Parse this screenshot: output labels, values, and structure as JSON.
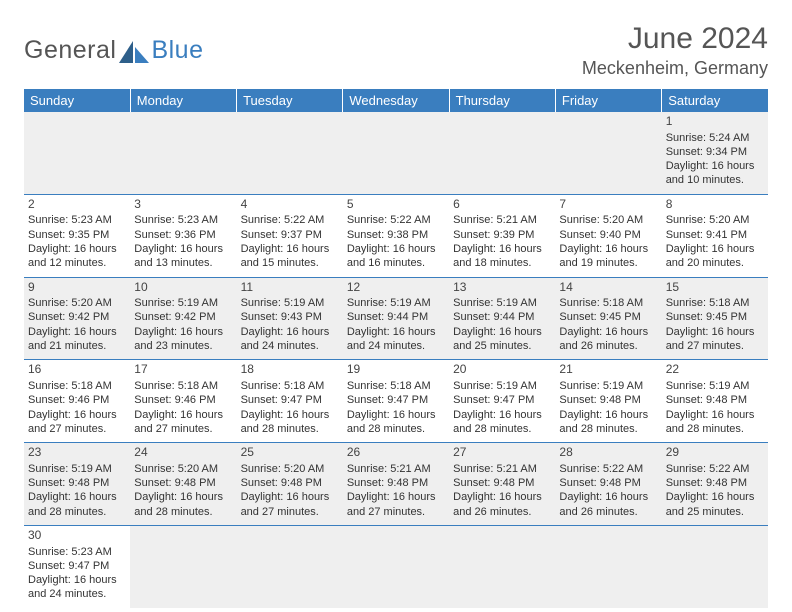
{
  "brand": {
    "part1": "General",
    "part2": "Blue"
  },
  "title": {
    "month": "June 2024",
    "location": "Meckenheim, Germany"
  },
  "colors": {
    "header_bg": "#3a7ebf",
    "header_fg": "#ffffff",
    "row_alt_bg": "#efefef",
    "text": "#333333",
    "title_text": "#555555",
    "border": "#3a7ebf"
  },
  "fonts": {
    "base_family": "Arial",
    "title_size_pt": 22,
    "header_size_pt": 10,
    "cell_size_pt": 8
  },
  "weekdays": [
    "Sunday",
    "Monday",
    "Tuesday",
    "Wednesday",
    "Thursday",
    "Friday",
    "Saturday"
  ],
  "grid": [
    [
      null,
      null,
      null,
      null,
      null,
      null,
      {
        "n": "1",
        "sr": "Sunrise: 5:24 AM",
        "ss": "Sunset: 9:34 PM",
        "d1": "Daylight: 16 hours",
        "d2": "and 10 minutes."
      }
    ],
    [
      {
        "n": "2",
        "sr": "Sunrise: 5:23 AM",
        "ss": "Sunset: 9:35 PM",
        "d1": "Daylight: 16 hours",
        "d2": "and 12 minutes."
      },
      {
        "n": "3",
        "sr": "Sunrise: 5:23 AM",
        "ss": "Sunset: 9:36 PM",
        "d1": "Daylight: 16 hours",
        "d2": "and 13 minutes."
      },
      {
        "n": "4",
        "sr": "Sunrise: 5:22 AM",
        "ss": "Sunset: 9:37 PM",
        "d1": "Daylight: 16 hours",
        "d2": "and 15 minutes."
      },
      {
        "n": "5",
        "sr": "Sunrise: 5:22 AM",
        "ss": "Sunset: 9:38 PM",
        "d1": "Daylight: 16 hours",
        "d2": "and 16 minutes."
      },
      {
        "n": "6",
        "sr": "Sunrise: 5:21 AM",
        "ss": "Sunset: 9:39 PM",
        "d1": "Daylight: 16 hours",
        "d2": "and 18 minutes."
      },
      {
        "n": "7",
        "sr": "Sunrise: 5:20 AM",
        "ss": "Sunset: 9:40 PM",
        "d1": "Daylight: 16 hours",
        "d2": "and 19 minutes."
      },
      {
        "n": "8",
        "sr": "Sunrise: 5:20 AM",
        "ss": "Sunset: 9:41 PM",
        "d1": "Daylight: 16 hours",
        "d2": "and 20 minutes."
      }
    ],
    [
      {
        "n": "9",
        "sr": "Sunrise: 5:20 AM",
        "ss": "Sunset: 9:42 PM",
        "d1": "Daylight: 16 hours",
        "d2": "and 21 minutes."
      },
      {
        "n": "10",
        "sr": "Sunrise: 5:19 AM",
        "ss": "Sunset: 9:42 PM",
        "d1": "Daylight: 16 hours",
        "d2": "and 23 minutes."
      },
      {
        "n": "11",
        "sr": "Sunrise: 5:19 AM",
        "ss": "Sunset: 9:43 PM",
        "d1": "Daylight: 16 hours",
        "d2": "and 24 minutes."
      },
      {
        "n": "12",
        "sr": "Sunrise: 5:19 AM",
        "ss": "Sunset: 9:44 PM",
        "d1": "Daylight: 16 hours",
        "d2": "and 24 minutes."
      },
      {
        "n": "13",
        "sr": "Sunrise: 5:19 AM",
        "ss": "Sunset: 9:44 PM",
        "d1": "Daylight: 16 hours",
        "d2": "and 25 minutes."
      },
      {
        "n": "14",
        "sr": "Sunrise: 5:18 AM",
        "ss": "Sunset: 9:45 PM",
        "d1": "Daylight: 16 hours",
        "d2": "and 26 minutes."
      },
      {
        "n": "15",
        "sr": "Sunrise: 5:18 AM",
        "ss": "Sunset: 9:45 PM",
        "d1": "Daylight: 16 hours",
        "d2": "and 27 minutes."
      }
    ],
    [
      {
        "n": "16",
        "sr": "Sunrise: 5:18 AM",
        "ss": "Sunset: 9:46 PM",
        "d1": "Daylight: 16 hours",
        "d2": "and 27 minutes."
      },
      {
        "n": "17",
        "sr": "Sunrise: 5:18 AM",
        "ss": "Sunset: 9:46 PM",
        "d1": "Daylight: 16 hours",
        "d2": "and 27 minutes."
      },
      {
        "n": "18",
        "sr": "Sunrise: 5:18 AM",
        "ss": "Sunset: 9:47 PM",
        "d1": "Daylight: 16 hours",
        "d2": "and 28 minutes."
      },
      {
        "n": "19",
        "sr": "Sunrise: 5:18 AM",
        "ss": "Sunset: 9:47 PM",
        "d1": "Daylight: 16 hours",
        "d2": "and 28 minutes."
      },
      {
        "n": "20",
        "sr": "Sunrise: 5:19 AM",
        "ss": "Sunset: 9:47 PM",
        "d1": "Daylight: 16 hours",
        "d2": "and 28 minutes."
      },
      {
        "n": "21",
        "sr": "Sunrise: 5:19 AM",
        "ss": "Sunset: 9:48 PM",
        "d1": "Daylight: 16 hours",
        "d2": "and 28 minutes."
      },
      {
        "n": "22",
        "sr": "Sunrise: 5:19 AM",
        "ss": "Sunset: 9:48 PM",
        "d1": "Daylight: 16 hours",
        "d2": "and 28 minutes."
      }
    ],
    [
      {
        "n": "23",
        "sr": "Sunrise: 5:19 AM",
        "ss": "Sunset: 9:48 PM",
        "d1": "Daylight: 16 hours",
        "d2": "and 28 minutes."
      },
      {
        "n": "24",
        "sr": "Sunrise: 5:20 AM",
        "ss": "Sunset: 9:48 PM",
        "d1": "Daylight: 16 hours",
        "d2": "and 28 minutes."
      },
      {
        "n": "25",
        "sr": "Sunrise: 5:20 AM",
        "ss": "Sunset: 9:48 PM",
        "d1": "Daylight: 16 hours",
        "d2": "and 27 minutes."
      },
      {
        "n": "26",
        "sr": "Sunrise: 5:21 AM",
        "ss": "Sunset: 9:48 PM",
        "d1": "Daylight: 16 hours",
        "d2": "and 27 minutes."
      },
      {
        "n": "27",
        "sr": "Sunrise: 5:21 AM",
        "ss": "Sunset: 9:48 PM",
        "d1": "Daylight: 16 hours",
        "d2": "and 26 minutes."
      },
      {
        "n": "28",
        "sr": "Sunrise: 5:22 AM",
        "ss": "Sunset: 9:48 PM",
        "d1": "Daylight: 16 hours",
        "d2": "and 26 minutes."
      },
      {
        "n": "29",
        "sr": "Sunrise: 5:22 AM",
        "ss": "Sunset: 9:48 PM",
        "d1": "Daylight: 16 hours",
        "d2": "and 25 minutes."
      }
    ],
    [
      {
        "n": "30",
        "sr": "Sunrise: 5:23 AM",
        "ss": "Sunset: 9:47 PM",
        "d1": "Daylight: 16 hours",
        "d2": "and 24 minutes."
      },
      null,
      null,
      null,
      null,
      null,
      null
    ]
  ]
}
